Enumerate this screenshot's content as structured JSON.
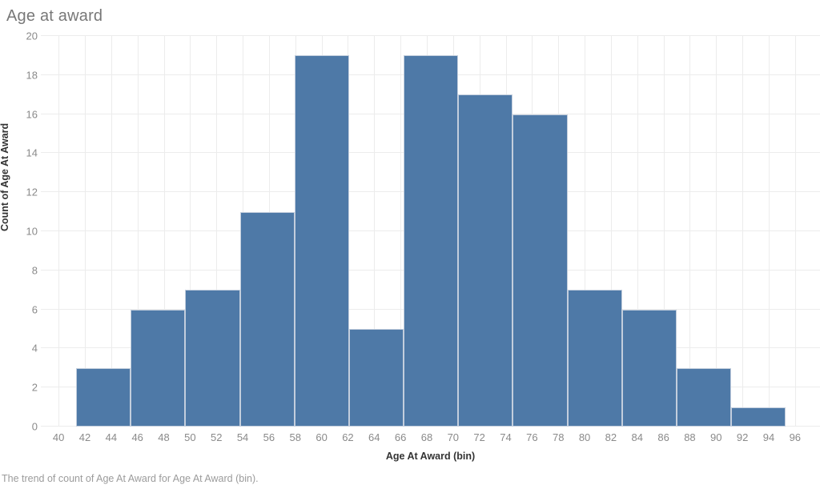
{
  "chart_data": {
    "type": "bar",
    "chart_kind": "histogram",
    "title": "Age at award",
    "xlabel": "Age At Award (bin)",
    "ylabel": "Count of Age At Award",
    "caption": "The trend of count of Age At Award for Age At Award (bin).",
    "x_ticks": [
      40,
      42,
      44,
      46,
      48,
      50,
      52,
      54,
      56,
      58,
      60,
      62,
      64,
      66,
      68,
      70,
      72,
      74,
      76,
      78,
      80,
      82,
      84,
      86,
      88,
      90,
      92,
      94,
      96
    ],
    "y_ticks": [
      0,
      2,
      4,
      6,
      8,
      10,
      12,
      14,
      16,
      18,
      20
    ],
    "xlim": [
      38.65,
      97.9
    ],
    "ylim": [
      0,
      20
    ],
    "grid": true,
    "legend": "none",
    "bin_width": 4.15,
    "bins": [
      {
        "start": 41.34,
        "end": 45.49,
        "count": 3
      },
      {
        "start": 45.49,
        "end": 49.64,
        "count": 6
      },
      {
        "start": 49.64,
        "end": 53.79,
        "count": 7
      },
      {
        "start": 53.79,
        "end": 57.94,
        "count": 11
      },
      {
        "start": 57.94,
        "end": 62.09,
        "count": 19
      },
      {
        "start": 62.09,
        "end": 66.24,
        "count": 5
      },
      {
        "start": 66.24,
        "end": 70.39,
        "count": 19
      },
      {
        "start": 70.39,
        "end": 74.54,
        "count": 17
      },
      {
        "start": 74.54,
        "end": 78.69,
        "count": 16
      },
      {
        "start": 78.69,
        "end": 82.84,
        "count": 7
      },
      {
        "start": 82.84,
        "end": 86.99,
        "count": 6
      },
      {
        "start": 86.99,
        "end": 91.14,
        "count": 3
      },
      {
        "start": 91.14,
        "end": 95.29,
        "count": 1
      }
    ],
    "total_count": 120,
    "colors": {
      "bar_fill": "#4e79a7",
      "bar_border": "#c3cedd",
      "gridline": "#ececec",
      "tick_label": "#8a8a8a",
      "axis_title": "#333333",
      "chart_title": "#787878",
      "caption": "#9b9b9b",
      "background": "#ffffff"
    }
  }
}
